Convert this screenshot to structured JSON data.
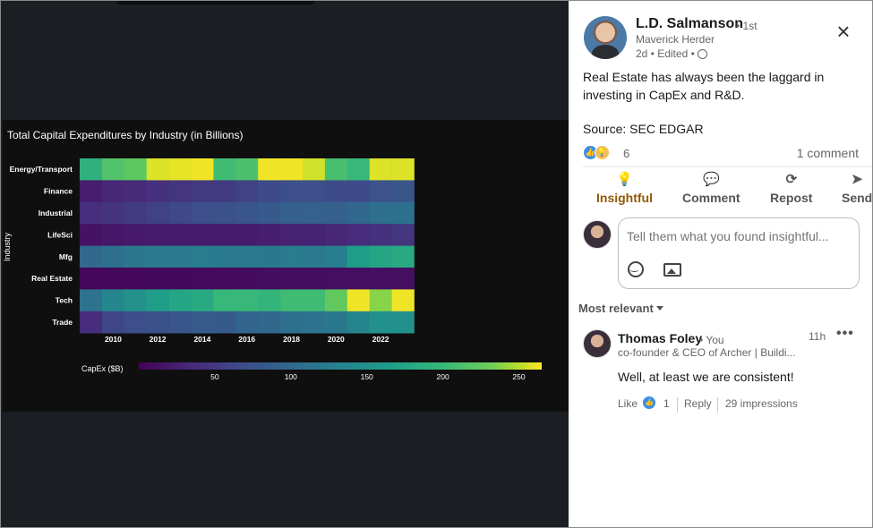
{
  "chart_data": {
    "type": "heatmap",
    "title": "Total Capital Expenditures by Industry (in Billions)",
    "ylabel": "Industry",
    "xlabel": "",
    "industries": [
      "Energy/Transport",
      "Finance",
      "Industrial",
      "LifeSci",
      "Mfg",
      "Real Estate",
      "Tech",
      "Trade"
    ],
    "years": [
      2009,
      2010,
      2011,
      2012,
      2013,
      2014,
      2015,
      2016,
      2017,
      2018,
      2019,
      2020,
      2021,
      2022,
      2023
    ],
    "x_tick_labels": [
      2010,
      2012,
      2014,
      2016,
      2018,
      2020,
      2022
    ],
    "values": [
      [
        190,
        215,
        222,
        258,
        260,
        262,
        205,
        212,
        262,
        262,
        255,
        210,
        200,
        258,
        258
      ],
      [
        25,
        32,
        36,
        42,
        46,
        50,
        52,
        58,
        66,
        72,
        72,
        68,
        66,
        75,
        80
      ],
      [
        40,
        45,
        52,
        58,
        64,
        72,
        74,
        78,
        84,
        90,
        92,
        90,
        98,
        108,
        110
      ],
      [
        15,
        18,
        20,
        22,
        22,
        22,
        22,
        22,
        25,
        28,
        28,
        32,
        38,
        42,
        46
      ],
      [
        98,
        108,
        118,
        122,
        122,
        125,
        122,
        122,
        120,
        125,
        122,
        128,
        165,
        175,
        180
      ],
      [
        5,
        6,
        6,
        7,
        7,
        8,
        8,
        9,
        10,
        10,
        10,
        11,
        12,
        12,
        12
      ],
      [
        112,
        138,
        152,
        165,
        175,
        180,
        200,
        200,
        195,
        205,
        205,
        225,
        262,
        238,
        262
      ],
      [
        38,
        62,
        72,
        74,
        78,
        86,
        84,
        96,
        100,
        108,
        112,
        118,
        136,
        150,
        150
      ]
    ],
    "colorbar_label": "CapEx ($B)",
    "colorbar_range": [
      0,
      265
    ],
    "colorbar_ticks": [
      50,
      100,
      150,
      200,
      250
    ],
    "colormap": "viridis"
  },
  "post": {
    "author_name": "L.D. Salmanson",
    "degree": "• 1st",
    "author_title": "Maverick Herder",
    "meta": "2d • Edited •",
    "text": "Real Estate has always been the laggard in investing in CapEx and R&D.",
    "source": "Source: SEC EDGAR",
    "reaction_count": "6",
    "comment_count": "1 comment",
    "close_icon": "×"
  },
  "actions": {
    "insightful": "Insightful",
    "comment": "Comment",
    "repost": "Repost",
    "send": "Send"
  },
  "composer": {
    "placeholder": "Tell them what you found insightful..."
  },
  "sort_label": "Most relevant",
  "comment": {
    "name": "Thomas Foley",
    "badge": "• You",
    "time": "11h",
    "more": "•••",
    "headline": "co-founder & CEO of Archer | Buildi...",
    "text": "Well, at least we are consistent!",
    "like": "Like",
    "reaction_count": "1",
    "reply": "Reply",
    "impressions": "29 impressions"
  },
  "colors": {
    "insightful": "#915907",
    "link_blue": "#0a66c2"
  }
}
